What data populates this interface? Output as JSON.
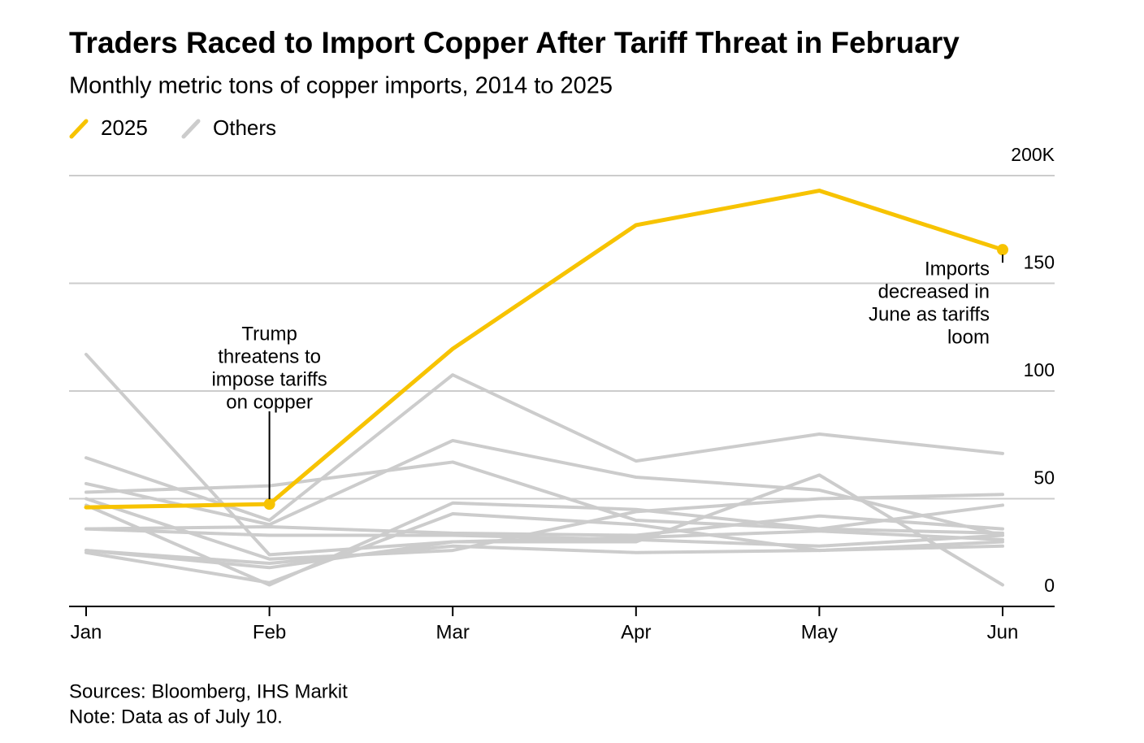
{
  "chart_data": {
    "type": "line",
    "title": "Traders Raced to Import Copper After Tariff Threat in February",
    "subtitle": "Monthly metric tons of copper imports, 2014 to 2025",
    "categories": [
      "Jan",
      "Feb",
      "Mar",
      "Apr",
      "May",
      "Jun"
    ],
    "series": [
      {
        "name": "2025",
        "color": "#f7c300",
        "values": [
          46,
          47.5,
          119.6,
          177,
          193,
          165.6
        ]
      }
    ],
    "others": {
      "name": "Others",
      "color": "#cccccc",
      "lines": [
        [
          117,
          24,
          30,
          32,
          35,
          31
        ],
        [
          69,
          40,
          107.5,
          67.5,
          80,
          71
        ],
        [
          53,
          56,
          67,
          40,
          36,
          47
        ],
        [
          57,
          38,
          77,
          60,
          54,
          33
        ],
        [
          47,
          10,
          48,
          45,
          36,
          34
        ],
        [
          36,
          37,
          34,
          33,
          42,
          36
        ],
        [
          26,
          18,
          30,
          30,
          61,
          10
        ],
        [
          25,
          11,
          43,
          38,
          26,
          30
        ],
        [
          26,
          20,
          28,
          25,
          26,
          28
        ],
        [
          36,
          33,
          33,
          31,
          28,
          33
        ],
        [
          50,
          22,
          26,
          44,
          50,
          52
        ]
      ]
    },
    "ylim": [
      0,
      200
    ],
    "yticks": [
      0,
      50,
      100,
      150,
      {
        "value": 200,
        "label": "200K"
      }
    ],
    "grid": true,
    "annotations": [
      {
        "lines": [
          "Trump",
          "threatens to",
          "impose tariffs",
          "on copper"
        ],
        "category": 1
      },
      {
        "lines": [
          "Imports",
          "decreased in",
          "June as tariffs",
          "loom"
        ],
        "category": 5
      }
    ],
    "source": "Sources: Bloomberg, IHS Markit",
    "note": "Note: Data as of July 10."
  }
}
